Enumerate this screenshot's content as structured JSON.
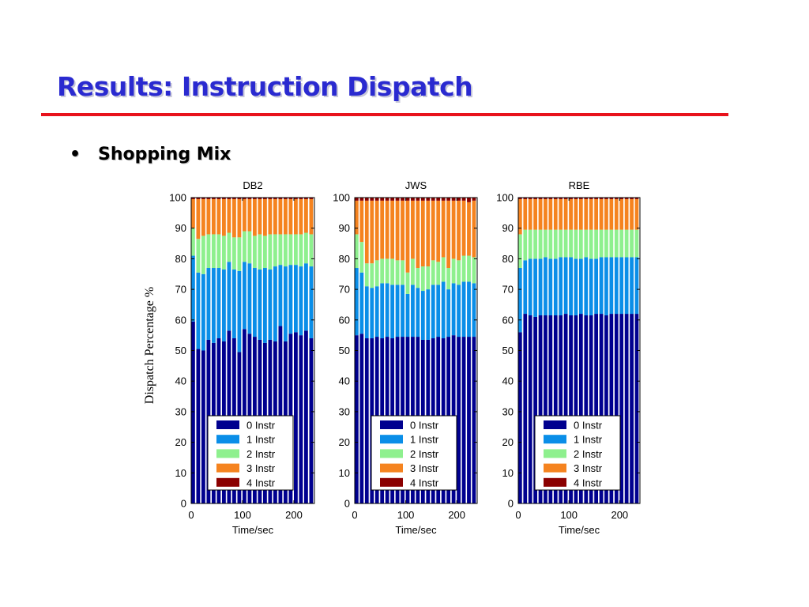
{
  "slide": {
    "title": "Results: Instruction Dispatch",
    "bullet": "•",
    "subtitle": "Shopping Mix",
    "y_axis_label": "Dispatch Percentage %"
  },
  "colors": {
    "title": "#2a2ad0",
    "rule": "#e8121c",
    "series": [
      "#00008f",
      "#0a8ee8",
      "#8ef08e",
      "#f5831f",
      "#8b0000"
    ]
  },
  "chart_data": [
    {
      "type": "bar",
      "stacked": true,
      "title": "DB2",
      "xlabel": "Time/sec",
      "ylabel": "Dispatch Percentage %",
      "ylim": [
        0,
        100
      ],
      "xlim": [
        0,
        240
      ],
      "xticks": [
        0,
        100,
        200
      ],
      "yticks": [
        0,
        10,
        20,
        30,
        40,
        50,
        60,
        70,
        80,
        90,
        100
      ],
      "legend_position": "bottom-center",
      "x": [
        0,
        10,
        20,
        30,
        40,
        50,
        60,
        70,
        80,
        90,
        100,
        110,
        120,
        130,
        140,
        150,
        160,
        170,
        180,
        190,
        200,
        210,
        220,
        230
      ],
      "series": [
        {
          "name": "0 Instr",
          "values": [
            59.5,
            50.5,
            50,
            53.5,
            52.5,
            54,
            53,
            56.5,
            54,
            49.5,
            57,
            55.5,
            54.5,
            53.5,
            52.5,
            53.5,
            53,
            58,
            53,
            55.5,
            56,
            55,
            56.5,
            54
          ]
        },
        {
          "name": "1 Instr",
          "values": [
            21.5,
            25,
            25,
            23.5,
            24.5,
            23,
            23.5,
            22.5,
            22.5,
            26.5,
            22,
            23,
            22.5,
            23,
            24.5,
            23,
            24.5,
            20,
            24.5,
            22.5,
            22,
            22.5,
            22,
            23.5
          ]
        },
        {
          "name": "2 Instr",
          "values": [
            9,
            11,
            12.5,
            11,
            11,
            11,
            11,
            9.5,
            10.5,
            11,
            10,
            10.5,
            10.5,
            11.5,
            10.5,
            11.5,
            10.5,
            10,
            10.5,
            10,
            10,
            10.5,
            10,
            10.5
          ]
        },
        {
          "name": "3 Instr",
          "values": [
            9.5,
            13,
            12,
            11.5,
            11.5,
            11.5,
            12,
            11,
            12.5,
            12.5,
            10.5,
            10.5,
            12,
            11.5,
            12,
            11.5,
            11.5,
            11.5,
            11.5,
            11.5,
            11.5,
            11.5,
            11,
            11.5
          ]
        },
        {
          "name": "4 Instr",
          "values": [
            0.5,
            0.5,
            0.5,
            0.5,
            0.5,
            0.5,
            0.5,
            0.5,
            0.5,
            0.5,
            0.5,
            0.5,
            0.5,
            0.5,
            0.5,
            0.5,
            0.5,
            0.5,
            0.5,
            0.5,
            0.5,
            0.5,
            0.5,
            0.5
          ]
        }
      ]
    },
    {
      "type": "bar",
      "stacked": true,
      "title": "JWS",
      "xlabel": "Time/sec",
      "ylabel": "",
      "ylim": [
        0,
        100
      ],
      "xlim": [
        0,
        240
      ],
      "xticks": [
        0,
        100,
        200
      ],
      "yticks": [
        0,
        10,
        20,
        30,
        40,
        50,
        60,
        70,
        80,
        90,
        100
      ],
      "legend_position": "bottom-center",
      "x": [
        0,
        10,
        20,
        30,
        40,
        50,
        60,
        70,
        80,
        90,
        100,
        110,
        120,
        130,
        140,
        150,
        160,
        170,
        180,
        190,
        200,
        210,
        220,
        230
      ],
      "series": [
        {
          "name": "0 Instr",
          "values": [
            55,
            55.5,
            54,
            54,
            54.5,
            54,
            54.5,
            54,
            54.5,
            54.5,
            54.5,
            54.5,
            54.5,
            53.5,
            53.5,
            54,
            54.5,
            54,
            54.5,
            55,
            54.5,
            54.5,
            54.5,
            54.5
          ]
        },
        {
          "name": "1 Instr",
          "values": [
            22,
            20,
            17,
            16.5,
            16.5,
            18,
            17.5,
            17.5,
            17,
            17,
            14,
            17,
            16,
            16,
            16.5,
            17.5,
            17,
            18.5,
            15.5,
            17,
            17,
            18,
            18,
            17.5
          ]
        },
        {
          "name": "2 Instr",
          "values": [
            11,
            10,
            7.5,
            8,
            8.5,
            8,
            8,
            8.5,
            8,
            8,
            7,
            8.5,
            6.5,
            8,
            7.5,
            8,
            7.5,
            8,
            7,
            8,
            8,
            8.5,
            8.5,
            8.5
          ]
        },
        {
          "name": "3 Instr",
          "values": [
            11,
            13.5,
            20.5,
            20.5,
            19.5,
            19,
            19,
            19,
            19.5,
            19.5,
            23.5,
            19,
            22,
            21.5,
            21.5,
            19.5,
            20,
            18.5,
            22,
            19,
            19.5,
            18,
            17.5,
            18.5
          ]
        },
        {
          "name": "4 Instr",
          "values": [
            1,
            1,
            1,
            1,
            1,
            1,
            1,
            1,
            1,
            1,
            1,
            1,
            1,
            1,
            1,
            1,
            1,
            1,
            1,
            1,
            1,
            1,
            1.5,
            1
          ]
        }
      ]
    },
    {
      "type": "bar",
      "stacked": true,
      "title": "RBE",
      "xlabel": "Time/sec",
      "ylabel": "",
      "ylim": [
        0,
        100
      ],
      "xlim": [
        0,
        240
      ],
      "xticks": [
        0,
        100,
        200
      ],
      "yticks": [
        0,
        10,
        20,
        30,
        40,
        50,
        60,
        70,
        80,
        90,
        100
      ],
      "legend_position": "bottom-center",
      "x": [
        0,
        10,
        20,
        30,
        40,
        50,
        60,
        70,
        80,
        90,
        100,
        110,
        120,
        130,
        140,
        150,
        160,
        170,
        180,
        190,
        200,
        210,
        220,
        230
      ],
      "series": [
        {
          "name": "0 Instr",
          "values": [
            56,
            62,
            61.5,
            61,
            61.5,
            61.5,
            61.5,
            61.5,
            61.5,
            62,
            61.5,
            61.5,
            62,
            61.5,
            61.5,
            62,
            62,
            61.5,
            62,
            62,
            62,
            62,
            62,
            62
          ]
        },
        {
          "name": "1 Instr",
          "values": [
            21,
            17.5,
            18.5,
            19,
            18.5,
            19,
            18.5,
            18.5,
            19,
            18.5,
            19,
            18.5,
            18,
            19,
            18.5,
            18,
            18.5,
            19,
            18.5,
            18.5,
            18.5,
            18.5,
            18.5,
            18.5
          ]
        },
        {
          "name": "2 Instr",
          "values": [
            11,
            10,
            9.5,
            9.5,
            9.5,
            9,
            9.5,
            9.5,
            9,
            9,
            9,
            9.5,
            9.5,
            9,
            9.5,
            9.5,
            9,
            9,
            9,
            9,
            9,
            9,
            9,
            9
          ]
        },
        {
          "name": "3 Instr",
          "values": [
            11.5,
            10,
            10,
            10,
            10,
            10,
            10,
            10,
            10,
            10,
            10,
            10,
            10,
            10,
            10,
            10,
            10,
            10,
            10,
            10,
            10,
            10,
            10,
            10
          ]
        },
        {
          "name": "4 Instr",
          "values": [
            0.5,
            0.5,
            0.5,
            0.5,
            0.5,
            0.5,
            0.5,
            0.5,
            0.5,
            0.5,
            0.5,
            0.5,
            0.5,
            0.5,
            0.5,
            0.5,
            0.5,
            0.5,
            0.5,
            0.5,
            0.5,
            0.5,
            0.5,
            0.5
          ]
        }
      ]
    }
  ]
}
